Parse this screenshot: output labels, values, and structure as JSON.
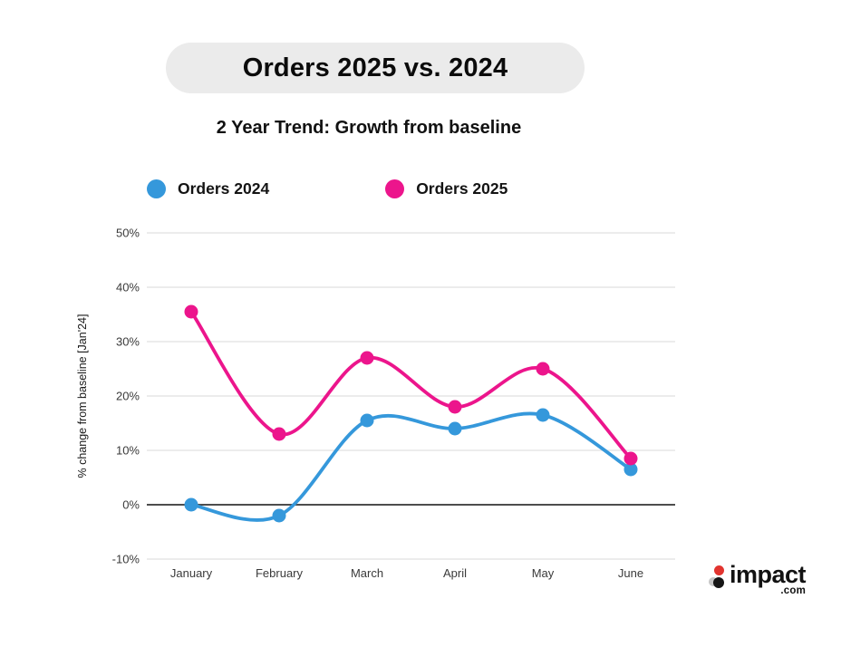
{
  "title": "Orders 2025 vs. 2024",
  "subtitle": "2 Year Trend: Growth from baseline",
  "legend": [
    {
      "label": "Orders 2024",
      "color": "#3598DB"
    },
    {
      "label": "Orders 2025",
      "color": "#EC158C"
    }
  ],
  "chart_data": {
    "type": "line",
    "categories": [
      "January",
      "February",
      "March",
      "April",
      "May",
      "June"
    ],
    "series": [
      {
        "name": "Orders 2024",
        "color": "#3598DB",
        "values": [
          0,
          -2,
          15.5,
          14,
          16.5,
          6.5
        ]
      },
      {
        "name": "Orders 2025",
        "color": "#EC158C",
        "values": [
          35.5,
          13,
          27,
          18,
          25,
          8.5
        ]
      }
    ],
    "xlabel": "",
    "ylabel": "% change from baseline [Jan'24]",
    "ylim": [
      -10,
      50
    ],
    "ytick_step": 10,
    "ytick_suffix": "%",
    "grid": true,
    "zero_line": true,
    "legend_position": "top",
    "colors": {
      "gridline": "#e6e6e6",
      "zero_line": "#4d4d4d",
      "tick_text": "#3a3a3a"
    }
  },
  "logo": {
    "text": "impact",
    "suffix": ".com",
    "mark_colors": {
      "top": "#E2342F",
      "bottom": "#161616",
      "accent": "#C6C6C6"
    }
  }
}
